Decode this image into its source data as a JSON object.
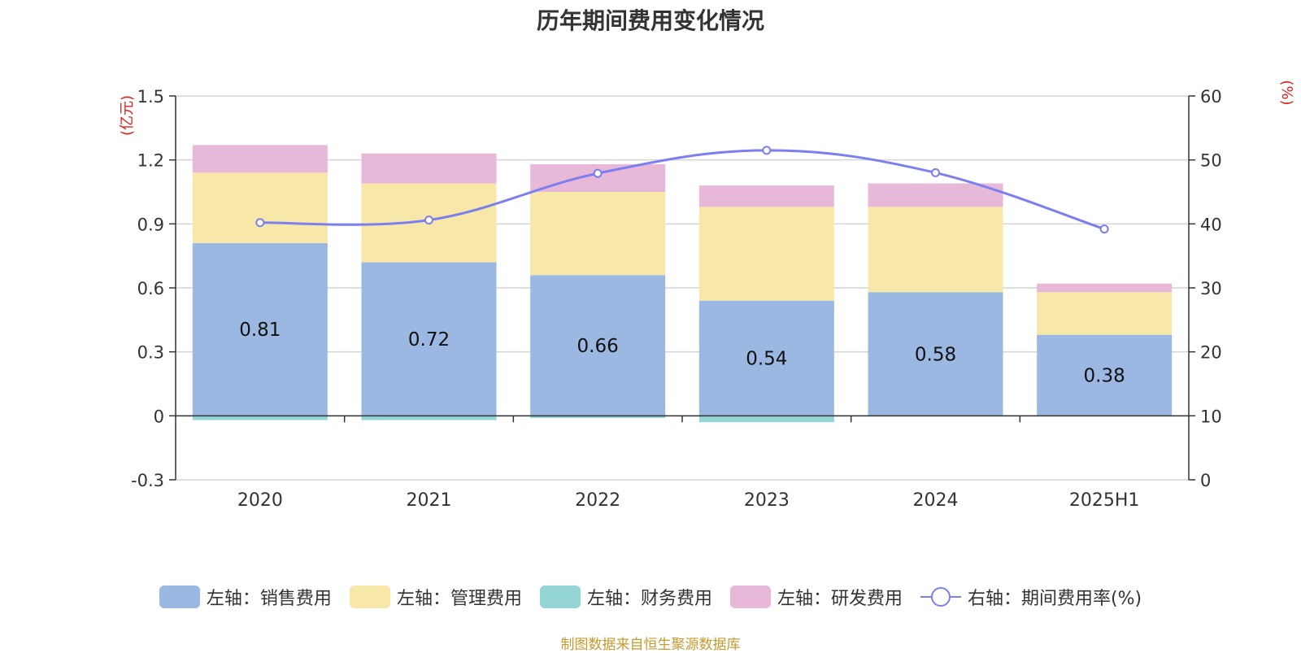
{
  "chart_data": {
    "type": "bar",
    "title": "历年期间费用变化情况",
    "categories": [
      "2020",
      "2021",
      "2022",
      "2023",
      "2024",
      "2025H1"
    ],
    "left_axis": {
      "label": "(亿元)",
      "ylim": [
        -0.3,
        1.5
      ],
      "ticks": [
        "1.5",
        "1.2",
        "0.9",
        "0.6",
        "0.3",
        "0",
        "-0.3"
      ],
      "tick_values": [
        1.5,
        1.2,
        0.9,
        0.6,
        0.3,
        0,
        -0.3
      ]
    },
    "right_axis": {
      "label": "(%)",
      "ylim": [
        0,
        60
      ],
      "ticks": [
        "60",
        "50",
        "40",
        "30",
        "20",
        "10",
        "0"
      ],
      "tick_values": [
        60,
        50,
        40,
        30,
        20,
        10,
        0
      ]
    },
    "series": [
      {
        "name": "左轴：销售费用",
        "type": "bar",
        "axis": "left",
        "color": "#9bb8e2",
        "values": [
          0.81,
          0.72,
          0.66,
          0.54,
          0.58,
          0.38
        ],
        "labels": [
          "0.81",
          "0.72",
          "0.66",
          "0.54",
          "0.58",
          "0.38"
        ]
      },
      {
        "name": "左轴：管理费用",
        "type": "bar",
        "axis": "left",
        "color": "#f7e7a8",
        "values": [
          0.33,
          0.37,
          0.39,
          0.44,
          0.4,
          0.2
        ]
      },
      {
        "name": "左轴：财务费用",
        "type": "bar",
        "axis": "left",
        "color": "#93d4d4",
        "values": [
          -0.02,
          -0.02,
          -0.01,
          -0.03,
          0.0,
          0.0
        ]
      },
      {
        "name": "左轴：研发费用",
        "type": "bar",
        "axis": "left",
        "color": "#e8b8d8",
        "values": [
          0.13,
          0.14,
          0.13,
          0.1,
          0.11,
          0.04
        ]
      },
      {
        "name": "右轴：期间费用率(%)",
        "type": "line",
        "axis": "right",
        "color": "#7b7fef",
        "values": [
          40.2,
          40.6,
          47.9,
          51.5,
          48.0,
          39.2
        ]
      }
    ],
    "grid": true,
    "legend_position": "bottom"
  },
  "source": "制图数据来自恒生聚源数据库"
}
